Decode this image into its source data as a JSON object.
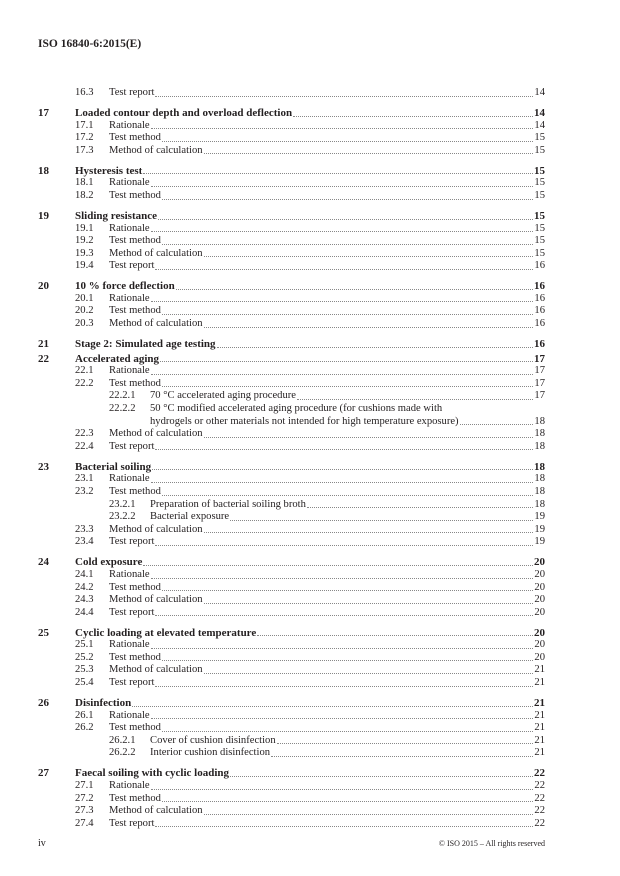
{
  "header": {
    "doc_id": "ISO 16840-6:2015(E)"
  },
  "footer": {
    "page": "iv",
    "copyright": "© ISO 2015 – All rights reserved"
  },
  "toc": [
    {
      "items": [
        {
          "number": "16.3",
          "title": "Test report",
          "page": "14"
        }
      ]
    },
    {
      "number": "17",
      "title": "Loaded contour depth and overload deflection",
      "page": "14",
      "items": [
        {
          "number": "17.1",
          "title": "Rationale",
          "page": "14"
        },
        {
          "number": "17.2",
          "title": "Test method",
          "page": "15"
        },
        {
          "number": "17.3",
          "title": "Method of calculation",
          "page": "15"
        }
      ]
    },
    {
      "number": "18",
      "title": "Hysteresis test",
      "page": "15",
      "items": [
        {
          "number": "18.1",
          "title": "Rationale",
          "page": "15"
        },
        {
          "number": "18.2",
          "title": "Test method",
          "page": "15"
        }
      ]
    },
    {
      "number": "19",
      "title": "Sliding resistance",
      "page": "15",
      "items": [
        {
          "number": "19.1",
          "title": "Rationale",
          "page": "15"
        },
        {
          "number": "19.2",
          "title": "Test method",
          "page": "15"
        },
        {
          "number": "19.3",
          "title": "Method of calculation",
          "page": "15"
        },
        {
          "number": "19.4",
          "title": "Test report",
          "page": "16"
        }
      ]
    },
    {
      "number": "20",
      "title": "10 % force deflection",
      "page": "16",
      "items": [
        {
          "number": "20.1",
          "title": "Rationale",
          "page": "16"
        },
        {
          "number": "20.2",
          "title": "Test method",
          "page": "16"
        },
        {
          "number": "20.3",
          "title": "Method of calculation",
          "page": "16"
        }
      ]
    },
    {
      "number": "21",
      "title": "Stage 2: Simulated age testing",
      "page": "16",
      "items": []
    },
    {
      "number": "22",
      "title": "Accelerated aging",
      "page": "17",
      "items": [
        {
          "number": "22.1",
          "title": "Rationale",
          "page": "17"
        },
        {
          "number": "22.2",
          "title": "Test method",
          "page": "17",
          "children": [
            {
              "number": "22.2.1",
              "title": "70 °C accelerated aging procedure",
              "page": "17"
            },
            {
              "number": "22.2.2",
              "title": "50 °C modified accelerated aging procedure (for cushions made with",
              "title_cont": "hydrogels or other materials not intended for high temperature exposure)",
              "page": "18"
            }
          ]
        },
        {
          "number": "22.3",
          "title": "Method of calculation",
          "page": "18"
        },
        {
          "number": "22.4",
          "title": "Test report",
          "page": "18"
        }
      ]
    },
    {
      "number": "23",
      "title": "Bacterial soiling",
      "page": "18",
      "items": [
        {
          "number": "23.1",
          "title": "Rationale",
          "page": "18"
        },
        {
          "number": "23.2",
          "title": "Test method",
          "page": "18",
          "children": [
            {
              "number": "23.2.1",
              "title": "Preparation of bacterial soiling broth",
              "page": "18"
            },
            {
              "number": "23.2.2",
              "title": "Bacterial exposure",
              "page": "19"
            }
          ]
        },
        {
          "number": "23.3",
          "title": "Method of calculation",
          "page": "19"
        },
        {
          "number": "23.4",
          "title": "Test report",
          "page": "19"
        }
      ]
    },
    {
      "number": "24",
      "title": "Cold exposure",
      "page": "20",
      "items": [
        {
          "number": "24.1",
          "title": "Rationale",
          "page": "20"
        },
        {
          "number": "24.2",
          "title": "Test method",
          "page": "20"
        },
        {
          "number": "24.3",
          "title": "Method of calculation",
          "page": "20"
        },
        {
          "number": "24.4",
          "title": "Test report",
          "page": "20"
        }
      ]
    },
    {
      "number": "25",
      "title": "Cyclic loading at elevated temperature",
      "page": "20",
      "items": [
        {
          "number": "25.1",
          "title": "Rationale",
          "page": "20"
        },
        {
          "number": "25.2",
          "title": "Test method",
          "page": "20"
        },
        {
          "number": "25.3",
          "title": "Method of calculation",
          "page": "21"
        },
        {
          "number": "25.4",
          "title": "Test report",
          "page": "21"
        }
      ]
    },
    {
      "number": "26",
      "title": "Disinfection",
      "page": "21",
      "items": [
        {
          "number": "26.1",
          "title": "Rationale",
          "page": "21"
        },
        {
          "number": "26.2",
          "title": "Test method",
          "page": "21",
          "children": [
            {
              "number": "26.2.1",
              "title": "Cover of cushion disinfection",
              "page": "21"
            },
            {
              "number": "26.2.2",
              "title": "Interior cushion disinfection",
              "page": "21"
            }
          ]
        }
      ]
    },
    {
      "number": "27",
      "title": "Faecal soiling with cyclic loading",
      "page": "22",
      "items": [
        {
          "number": "27.1",
          "title": "Rationale",
          "page": "22"
        },
        {
          "number": "27.2",
          "title": "Test method",
          "page": "22"
        },
        {
          "number": "27.3",
          "title": "Method of calculation",
          "page": "22"
        },
        {
          "number": "27.4",
          "title": "Test report",
          "page": "22"
        }
      ]
    }
  ]
}
